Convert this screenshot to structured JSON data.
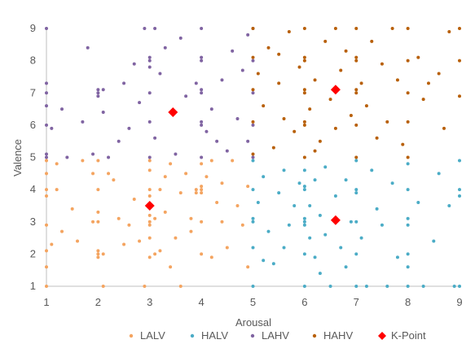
{
  "chart_data": {
    "type": "scatter",
    "title": "",
    "xlabel": "Arousal",
    "ylabel": "Valence",
    "xlim": [
      1,
      9
    ],
    "ylim": [
      1,
      9
    ],
    "x_ticks": [
      "1",
      "2",
      "3",
      "4",
      "5",
      "6",
      "7",
      "8",
      "9"
    ],
    "y_ticks": [
      "1",
      "2",
      "3",
      "4",
      "5",
      "6",
      "7",
      "8",
      "9"
    ],
    "grid": false,
    "legend_position": "bottom",
    "series": [
      {
        "name": "LALV",
        "color": "#F4A460",
        "points": [
          [
            1.0,
            1.0
          ],
          [
            1.0,
            1.6
          ],
          [
            1.0,
            2.1
          ],
          [
            1.0,
            2.9
          ],
          [
            1.0,
            3.8
          ],
          [
            1.0,
            4.0
          ],
          [
            1.0,
            4.5
          ],
          [
            1.0,
            4.9
          ],
          [
            1.2,
            4.0
          ],
          [
            1.2,
            4.8
          ],
          [
            1.3,
            2.7
          ],
          [
            1.5,
            3.4
          ],
          [
            1.7,
            4.9
          ],
          [
            1.9,
            4.5
          ],
          [
            1.9,
            3.0
          ],
          [
            2.0,
            2.0
          ],
          [
            2.0,
            1.9
          ],
          [
            2.0,
            2.1
          ],
          [
            2.1,
            2.0
          ],
          [
            2.0,
            3.0
          ],
          [
            2.0,
            4.0
          ],
          [
            2.0,
            4.9
          ],
          [
            2.0,
            3.3
          ],
          [
            2.1,
            1.0
          ],
          [
            2.3,
            4.3
          ],
          [
            2.4,
            3.1
          ],
          [
            2.5,
            2.3
          ],
          [
            2.7,
            3.7
          ],
          [
            2.8,
            2.4
          ],
          [
            2.9,
            1.0
          ],
          [
            3.0,
            1.9
          ],
          [
            3.0,
            2.5
          ],
          [
            3.0,
            2.9
          ],
          [
            3.0,
            3.0
          ],
          [
            3.0,
            3.2
          ],
          [
            3.0,
            3.8
          ],
          [
            3.0,
            4.0
          ],
          [
            3.0,
            4.6
          ],
          [
            3.0,
            4.9
          ],
          [
            3.1,
            2.0
          ],
          [
            3.1,
            3.1
          ],
          [
            3.2,
            2.1
          ],
          [
            3.2,
            4.0
          ],
          [
            3.3,
            3.3
          ],
          [
            3.4,
            1.6
          ],
          [
            3.4,
            4.8
          ],
          [
            3.5,
            2.5
          ],
          [
            3.6,
            3.9
          ],
          [
            3.6,
            1.0
          ],
          [
            3.7,
            4.5
          ],
          [
            3.8,
            3.1
          ],
          [
            3.9,
            4.0
          ],
          [
            3.9,
            3.9
          ],
          [
            4.0,
            3.9
          ],
          [
            4.0,
            4.0
          ],
          [
            4.0,
            4.1
          ],
          [
            4.0,
            2.0
          ],
          [
            4.0,
            3.0
          ],
          [
            4.0,
            4.8
          ],
          [
            4.1,
            4.4
          ],
          [
            4.2,
            1.9
          ],
          [
            4.3,
            3.6
          ],
          [
            4.4,
            4.2
          ],
          [
            4.5,
            2.2
          ],
          [
            4.6,
            4.9
          ],
          [
            4.7,
            3.5
          ],
          [
            4.8,
            2.9
          ],
          [
            4.9,
            4.1
          ],
          [
            4.9,
            1.6
          ],
          [
            1.1,
            2.3
          ],
          [
            1.6,
            2.4
          ],
          [
            2.2,
            4.5
          ],
          [
            2.6,
            2.9
          ],
          [
            3.3,
            4.4
          ],
          [
            3.8,
            2.7
          ],
          [
            4.4,
            3.0
          ],
          [
            4.2,
            4.9
          ]
        ]
      },
      {
        "name": "HALV",
        "color": "#4BACC6",
        "points": [
          [
            5.0,
            1.0
          ],
          [
            5.0,
            2.2
          ],
          [
            5.0,
            3.0
          ],
          [
            5.0,
            3.1
          ],
          [
            5.0,
            4.0
          ],
          [
            5.0,
            4.9
          ],
          [
            5.1,
            3.6
          ],
          [
            5.2,
            4.4
          ],
          [
            5.3,
            2.7
          ],
          [
            5.4,
            1.7
          ],
          [
            5.5,
            3.9
          ],
          [
            5.6,
            4.6
          ],
          [
            5.7,
            2.9
          ],
          [
            5.8,
            3.5
          ],
          [
            5.9,
            4.2
          ],
          [
            6.0,
            1.0
          ],
          [
            6.0,
            2.0
          ],
          [
            6.0,
            2.9
          ],
          [
            6.0,
            3.0
          ],
          [
            6.0,
            3.1
          ],
          [
            6.0,
            4.0
          ],
          [
            6.0,
            4.1
          ],
          [
            6.0,
            4.6
          ],
          [
            6.1,
            2.5
          ],
          [
            6.1,
            3.5
          ],
          [
            6.2,
            1.9
          ],
          [
            6.2,
            4.3
          ],
          [
            6.3,
            3.2
          ],
          [
            6.4,
            2.6
          ],
          [
            6.4,
            4.7
          ],
          [
            6.5,
            1.0
          ],
          [
            6.6,
            3.8
          ],
          [
            6.7,
            2.2
          ],
          [
            6.8,
            4.3
          ],
          [
            6.9,
            3.0
          ],
          [
            7.0,
            1.0
          ],
          [
            7.0,
            2.0
          ],
          [
            7.0,
            3.0
          ],
          [
            7.0,
            3.9
          ],
          [
            7.0,
            4.0
          ],
          [
            7.0,
            4.9
          ],
          [
            7.1,
            2.5
          ],
          [
            7.2,
            1.0
          ],
          [
            7.3,
            4.6
          ],
          [
            7.5,
            2.9
          ],
          [
            7.6,
            1.0
          ],
          [
            7.7,
            4.2
          ],
          [
            8.0,
            1.0
          ],
          [
            8.0,
            1.6
          ],
          [
            8.0,
            2.0
          ],
          [
            8.0,
            2.9
          ],
          [
            8.0,
            3.1
          ],
          [
            8.0,
            4.0
          ],
          [
            8.0,
            4.8
          ],
          [
            8.3,
            1.0
          ],
          [
            8.5,
            2.4
          ],
          [
            8.8,
            3.5
          ],
          [
            8.9,
            1.0
          ],
          [
            9.0,
            1.0
          ],
          [
            9.0,
            3.8
          ],
          [
            9.0,
            4.0
          ],
          [
            9.0,
            4.9
          ],
          [
            5.2,
            1.8
          ],
          [
            5.6,
            2.2
          ],
          [
            6.3,
            1.4
          ],
          [
            6.8,
            1.6
          ],
          [
            7.4,
            3.4
          ],
          [
            7.8,
            1.9
          ],
          [
            8.6,
            4.5
          ],
          [
            8.2,
            3.6
          ]
        ]
      },
      {
        "name": "LAHV",
        "color": "#8064A2",
        "points": [
          [
            1.0,
            5.0
          ],
          [
            1.0,
            5.1
          ],
          [
            1.0,
            6.0
          ],
          [
            1.0,
            7.0
          ],
          [
            1.0,
            7.3
          ],
          [
            1.0,
            9.0
          ],
          [
            1.0,
            6.6
          ],
          [
            1.1,
            5.9
          ],
          [
            1.3,
            6.5
          ],
          [
            1.4,
            5.0
          ],
          [
            1.8,
            8.4
          ],
          [
            1.9,
            5.1
          ],
          [
            2.0,
            6.9
          ],
          [
            2.0,
            7.0
          ],
          [
            2.0,
            7.1
          ],
          [
            2.1,
            6.4
          ],
          [
            2.1,
            7.1
          ],
          [
            2.2,
            5.0
          ],
          [
            2.5,
            7.3
          ],
          [
            2.6,
            5.9
          ],
          [
            2.8,
            6.7
          ],
          [
            2.9,
            9.0
          ],
          [
            3.0,
            5.0
          ],
          [
            3.0,
            6.1
          ],
          [
            3.0,
            7.0
          ],
          [
            3.0,
            7.8
          ],
          [
            3.0,
            8.0
          ],
          [
            3.0,
            8.1
          ],
          [
            3.1,
            9.0
          ],
          [
            3.1,
            5.6
          ],
          [
            3.2,
            7.6
          ],
          [
            3.3,
            8.4
          ],
          [
            3.5,
            5.1
          ],
          [
            3.7,
            6.9
          ],
          [
            3.9,
            7.3
          ],
          [
            4.0,
            5.0
          ],
          [
            4.0,
            6.0
          ],
          [
            4.0,
            6.1
          ],
          [
            4.0,
            7.0
          ],
          [
            4.0,
            7.1
          ],
          [
            4.0,
            8.0
          ],
          [
            4.0,
            8.1
          ],
          [
            4.0,
            9.0
          ],
          [
            4.1,
            5.8
          ],
          [
            4.2,
            6.5
          ],
          [
            4.4,
            7.4
          ],
          [
            4.5,
            5.2
          ],
          [
            4.6,
            8.3
          ],
          [
            4.7,
            6.2
          ],
          [
            4.8,
            7.7
          ],
          [
            4.9,
            5.5
          ],
          [
            4.9,
            8.8
          ],
          [
            5.0,
            5.0
          ],
          [
            5.0,
            6.0
          ],
          [
            5.0,
            7.0
          ],
          [
            5.0,
            8.0
          ],
          [
            5.0,
            9.0
          ],
          [
            2.4,
            5.5
          ],
          [
            3.6,
            8.7
          ],
          [
            4.3,
            5.5
          ],
          [
            2.7,
            7.9
          ],
          [
            1.7,
            6.1
          ]
        ]
      },
      {
        "name": "HAHV",
        "color": "#B8600A",
        "points": [
          [
            5.0,
            5.1
          ],
          [
            5.0,
            6.1
          ],
          [
            5.0,
            7.1
          ],
          [
            5.0,
            8.1
          ],
          [
            5.0,
            9.0
          ],
          [
            5.1,
            7.6
          ],
          [
            5.2,
            6.6
          ],
          [
            5.3,
            8.4
          ],
          [
            5.4,
            5.3
          ],
          [
            5.5,
            7.3
          ],
          [
            5.6,
            6.2
          ],
          [
            5.7,
            8.9
          ],
          [
            5.8,
            5.8
          ],
          [
            5.9,
            7.8
          ],
          [
            6.0,
            5.0
          ],
          [
            6.0,
            6.0
          ],
          [
            6.0,
            6.1
          ],
          [
            6.0,
            7.0
          ],
          [
            6.0,
            7.1
          ],
          [
            6.0,
            8.0
          ],
          [
            6.0,
            8.1
          ],
          [
            6.0,
            9.0
          ],
          [
            6.1,
            6.5
          ],
          [
            6.2,
            7.4
          ],
          [
            6.3,
            5.5
          ],
          [
            6.4,
            8.6
          ],
          [
            6.5,
            6.8
          ],
          [
            6.6,
            5.9
          ],
          [
            6.7,
            7.7
          ],
          [
            6.8,
            8.3
          ],
          [
            6.9,
            6.3
          ],
          [
            7.0,
            5.0
          ],
          [
            7.0,
            6.0
          ],
          [
            7.0,
            7.0
          ],
          [
            7.0,
            7.1
          ],
          [
            7.0,
            8.0
          ],
          [
            7.0,
            8.1
          ],
          [
            7.0,
            9.0
          ],
          [
            7.1,
            7.3
          ],
          [
            7.2,
            6.6
          ],
          [
            7.3,
            8.6
          ],
          [
            7.4,
            5.6
          ],
          [
            7.5,
            7.9
          ],
          [
            7.6,
            6.1
          ],
          [
            7.7,
            9.0
          ],
          [
            7.8,
            7.4
          ],
          [
            8.0,
            5.0
          ],
          [
            8.0,
            6.1
          ],
          [
            8.0,
            7.0
          ],
          [
            8.0,
            8.0
          ],
          [
            8.0,
            9.0
          ],
          [
            8.2,
            8.1
          ],
          [
            8.4,
            7.3
          ],
          [
            8.6,
            7.6
          ],
          [
            8.7,
            5.9
          ],
          [
            8.8,
            8.9
          ],
          [
            9.0,
            6.9
          ],
          [
            9.0,
            8.0
          ],
          [
            9.0,
            9.0
          ],
          [
            6.6,
            9.0
          ],
          [
            5.5,
            8.2
          ],
          [
            6.2,
            5.2
          ],
          [
            7.9,
            5.4
          ],
          [
            8.3,
            6.8
          ]
        ]
      },
      {
        "name": "K-Point",
        "color": "#FF0000",
        "marker": "diamond",
        "points": [
          [
            3.0,
            3.5
          ],
          [
            3.45,
            6.4
          ],
          [
            6.6,
            3.05
          ],
          [
            6.6,
            7.1
          ]
        ]
      }
    ]
  }
}
